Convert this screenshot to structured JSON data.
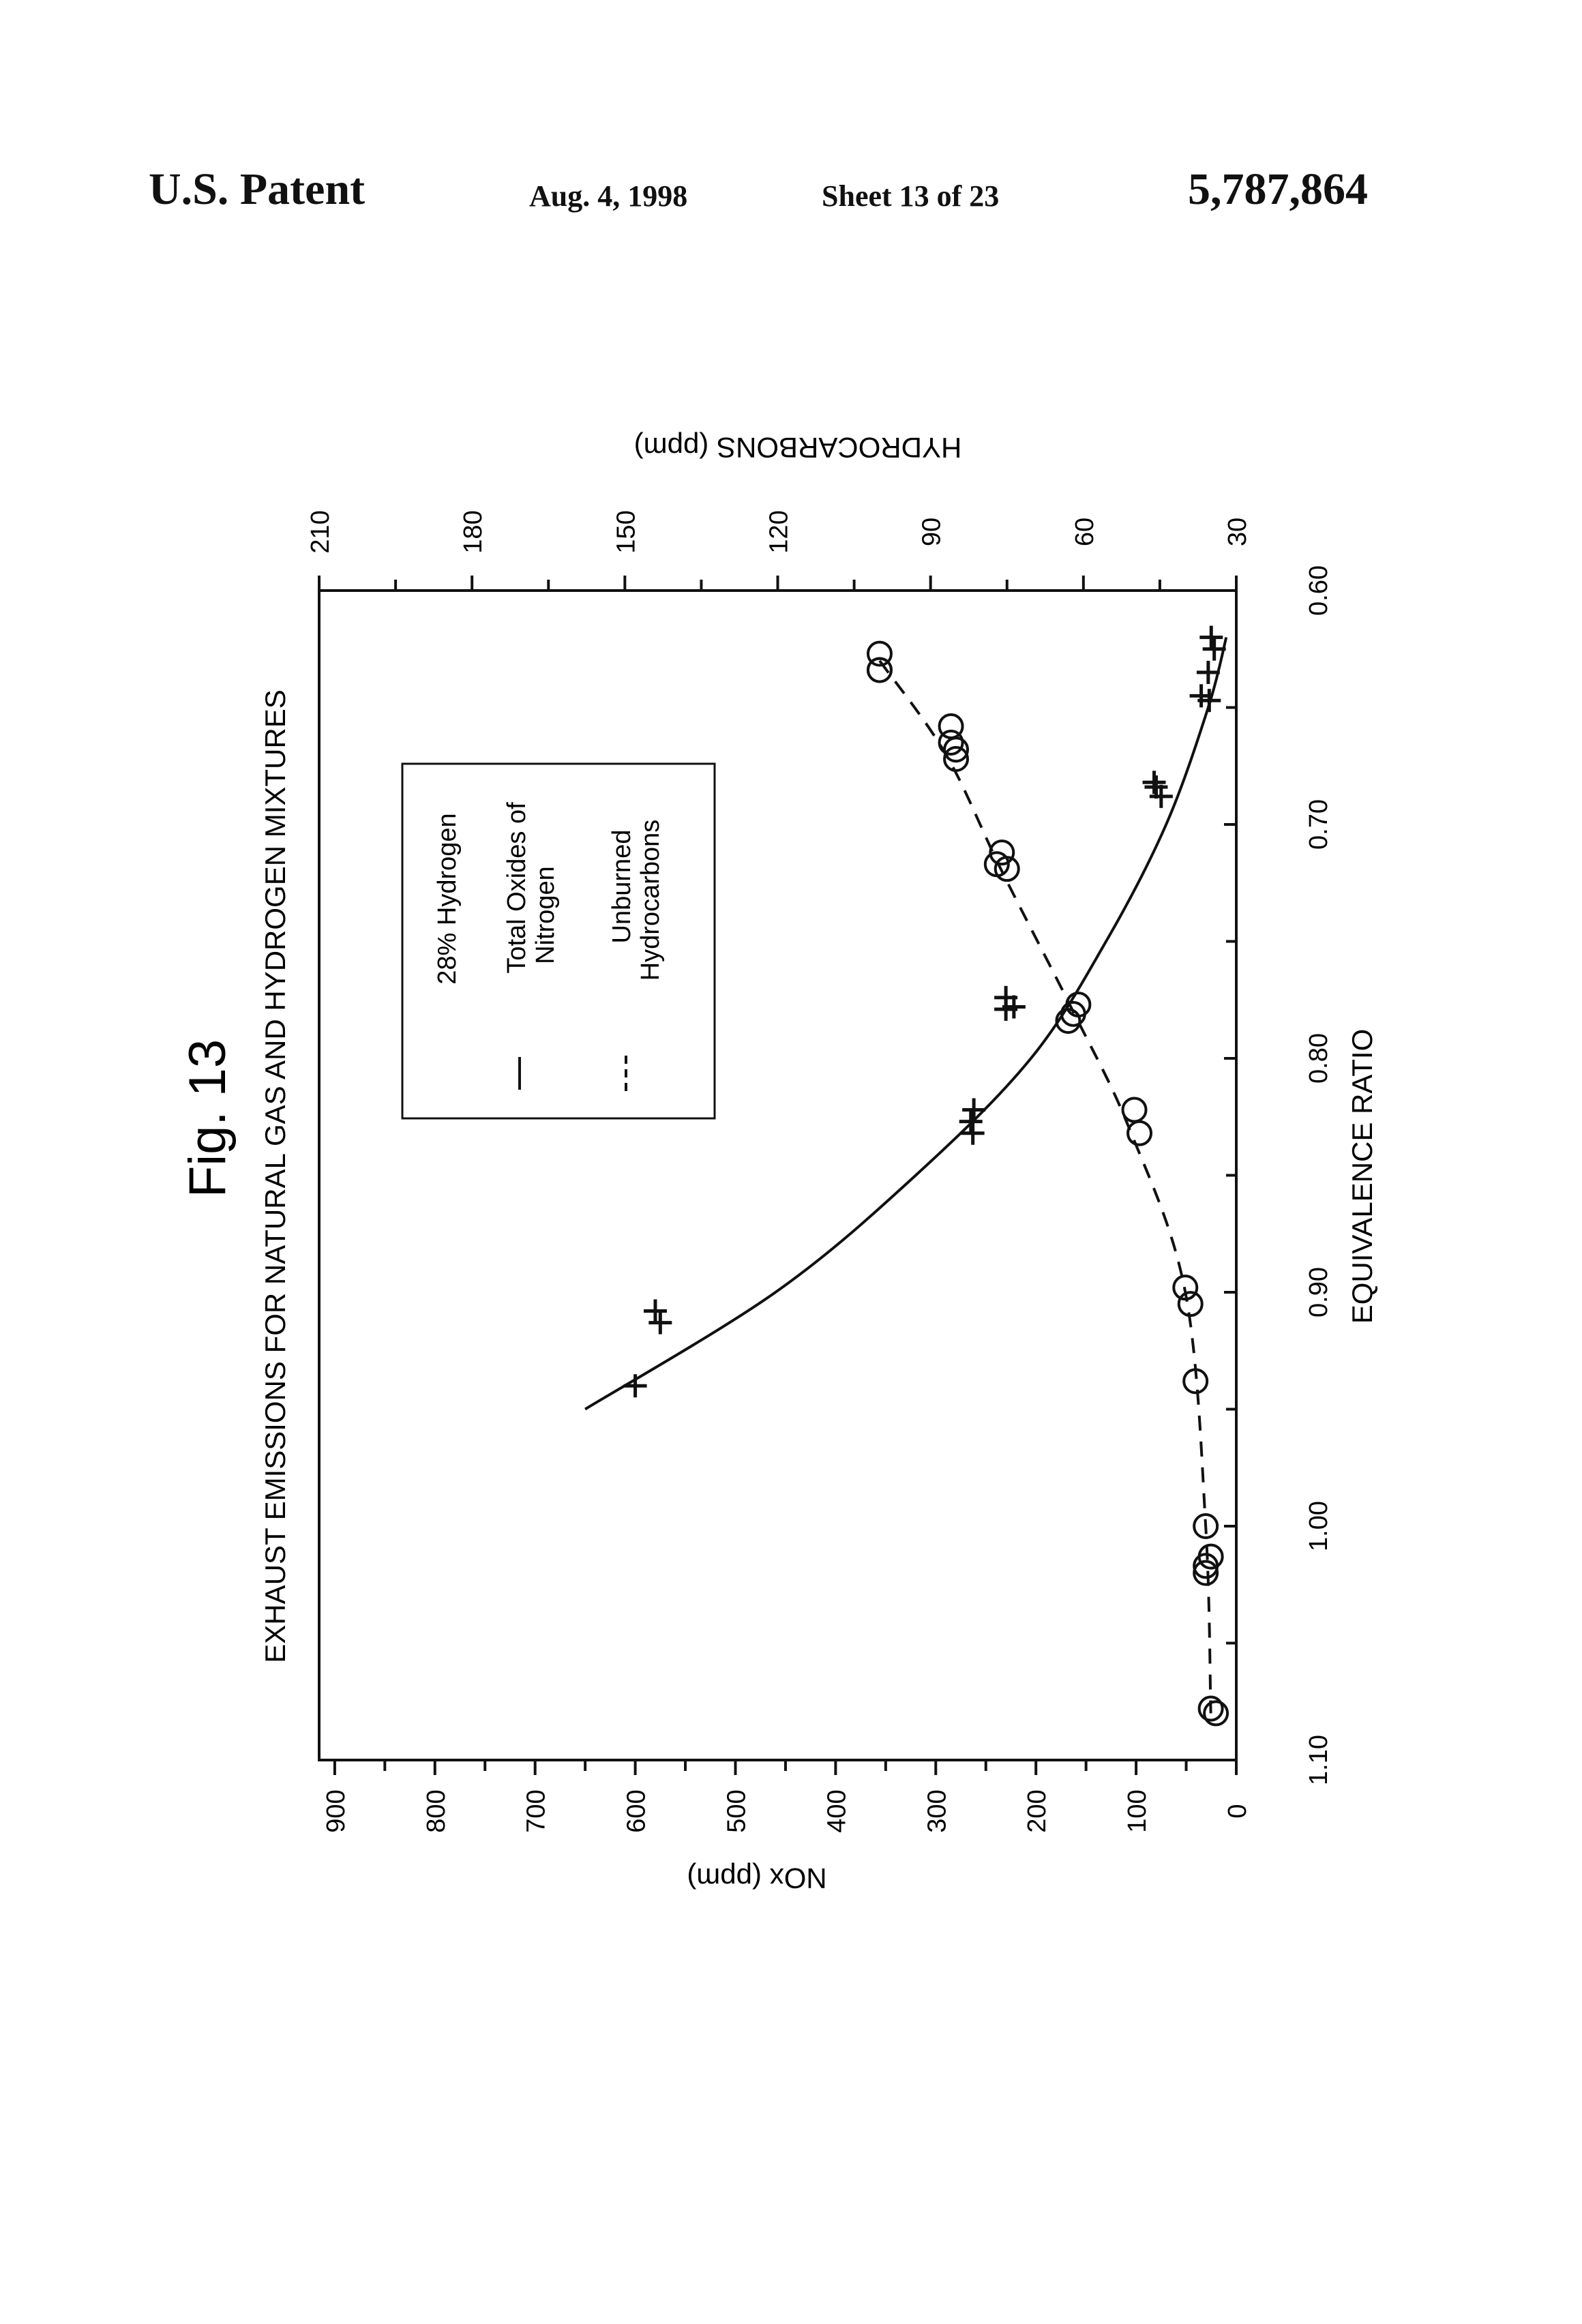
{
  "header": {
    "patent": "U.S. Patent",
    "date": "Aug. 4, 1998",
    "sheet": "Sheet 13 of 23",
    "number": "5,787,864"
  },
  "figure": {
    "label": "Fig. 13",
    "title": "EXHAUST EMISSIONS FOR NATURAL GAS AND HYDROGEN MIXTURES"
  },
  "legend": {
    "heading": "28% Hydrogen",
    "items": [
      {
        "line1": "Total Oxides of",
        "line2": "Nitrogen",
        "style": "solid"
      },
      {
        "line1": "Unburned",
        "line2": "Hydrocarbons",
        "style": "dashed"
      }
    ]
  },
  "chart_data": {
    "type": "scatter",
    "title": "EXHAUST EMISSIONS FOR NATURAL GAS AND HYDROGEN MIXTURES",
    "xlabel": "EQUIVALENCE RATIO",
    "ylabel": "NOx (ppm)",
    "y2label": "HYDROCARBONS (ppm)",
    "xlim": [
      0.6,
      1.1
    ],
    "ylim": [
      0,
      950
    ],
    "y2lim": [
      30,
      210
    ],
    "x_ticks": [
      "0.60",
      "0.70",
      "0.80",
      "0.90",
      "1.00",
      "1.10"
    ],
    "y_ticks": [
      "0",
      "100",
      "200",
      "300",
      "400",
      "500",
      "600",
      "700",
      "800",
      "900"
    ],
    "y2_ticks": [
      "30",
      "60",
      "90",
      "120",
      "150",
      "180",
      "210"
    ],
    "grid": false,
    "legend_position": "top-right",
    "series": [
      {
        "name": "Total Oxides of Nitrogen",
        "axis": "left",
        "marker": "plus",
        "line": "solid",
        "points": [
          [
            0.62,
            25
          ],
          [
            0.625,
            22
          ],
          [
            0.635,
            28
          ],
          [
            0.647,
            27
          ],
          [
            0.645,
            35
          ],
          [
            0.684,
            80
          ],
          [
            0.688,
            75
          ],
          [
            0.682,
            82
          ],
          [
            0.774,
            230
          ],
          [
            0.778,
            222
          ],
          [
            0.779,
            230
          ],
          [
            0.822,
            262
          ],
          [
            0.827,
            265
          ],
          [
            0.832,
            263
          ],
          [
            0.908,
            580
          ],
          [
            0.913,
            575
          ],
          [
            0.94,
            600
          ]
        ],
        "curve": [
          [
            0.62,
            10
          ],
          [
            0.65,
            28
          ],
          [
            0.7,
            70
          ],
          [
            0.75,
            130
          ],
          [
            0.8,
            205
          ],
          [
            0.85,
            320
          ],
          [
            0.9,
            460
          ],
          [
            0.95,
            650
          ]
        ]
      },
      {
        "name": "Unburned Hydrocarbons",
        "axis": "right",
        "marker": "circle",
        "line": "dashed",
        "points": [
          [
            0.627,
            100
          ],
          [
            0.634,
            100
          ],
          [
            0.634,
            100
          ],
          [
            0.658,
            86
          ],
          [
            0.665,
            86
          ],
          [
            0.668,
            85
          ],
          [
            0.672,
            85
          ],
          [
            0.712,
            76
          ],
          [
            0.717,
            77
          ],
          [
            0.719,
            75
          ],
          [
            0.777,
            61
          ],
          [
            0.781,
            62
          ],
          [
            0.784,
            63
          ],
          [
            0.822,
            50
          ],
          [
            0.832,
            49
          ],
          [
            0.898,
            40
          ],
          [
            0.905,
            39
          ],
          [
            0.938,
            38
          ],
          [
            1.0,
            36
          ],
          [
            1.013,
            35
          ],
          [
            1.017,
            36
          ],
          [
            1.02,
            36
          ],
          [
            1.078,
            35
          ],
          [
            1.08,
            34
          ]
        ],
        "curve": [
          [
            0.63,
            100
          ],
          [
            0.67,
            87
          ],
          [
            0.72,
            76
          ],
          [
            0.78,
            62
          ],
          [
            0.83,
            51
          ],
          [
            0.9,
            40
          ],
          [
            1.0,
            36
          ],
          [
            1.08,
            35
          ]
        ]
      }
    ]
  }
}
